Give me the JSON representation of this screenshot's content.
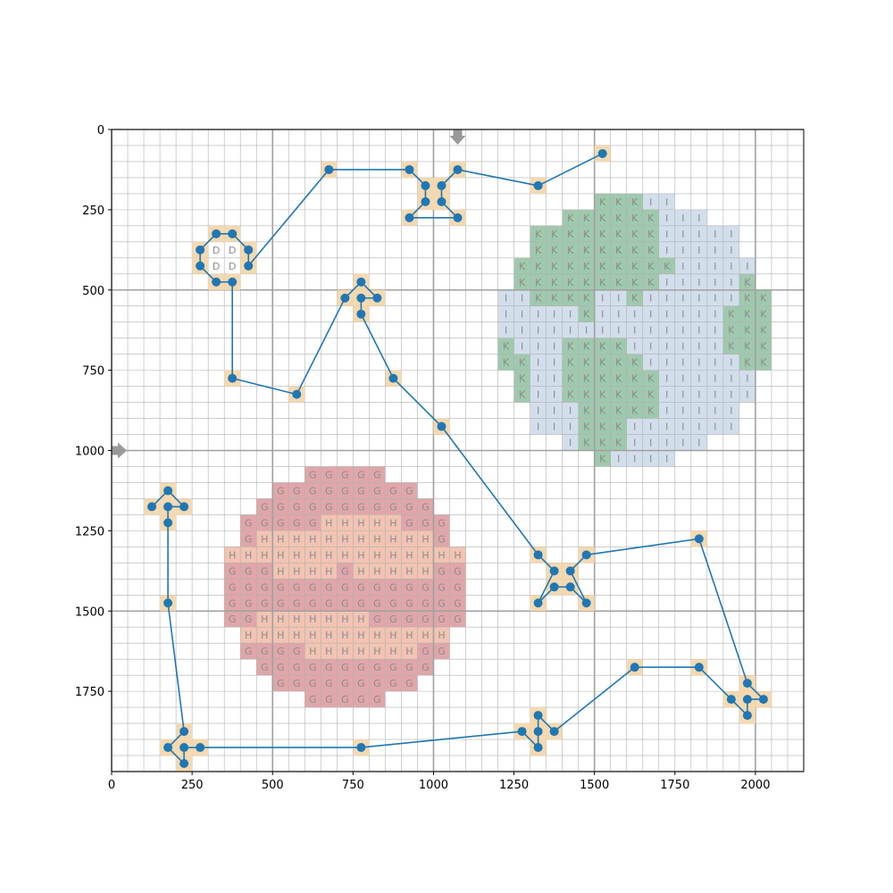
{
  "chart_data": {
    "type": "grid-path",
    "title": "",
    "xlabel": "",
    "ylabel": "",
    "xlim": [
      0,
      2150
    ],
    "ylim": [
      2000,
      0
    ],
    "grid": true,
    "minor_grid_step": 50,
    "major_grid_step": 500,
    "xticks": [
      0,
      250,
      500,
      750,
      1000,
      1250,
      1500,
      1750,
      2000
    ],
    "yticks": [
      0,
      250,
      500,
      750,
      1000,
      1250,
      1500,
      1750
    ],
    "markers": [
      {
        "x": 1075,
        "y": 25,
        "dir": "down"
      },
      {
        "x": 25,
        "y": 1000,
        "dir": "right"
      }
    ],
    "path": [
      [
        1525,
        75
      ],
      [
        1325,
        175
      ],
      [
        1075,
        125
      ],
      [
        1025,
        175
      ],
      [
        1025,
        225
      ],
      [
        1075,
        275
      ],
      [
        925,
        275
      ],
      [
        975,
        225
      ],
      [
        975,
        175
      ],
      [
        925,
        125
      ],
      [
        675,
        125
      ],
      [
        425,
        425
      ],
      [
        425,
        375
      ],
      [
        375,
        325
      ],
      [
        325,
        325
      ],
      [
        275,
        375
      ],
      [
        275,
        425
      ],
      [
        325,
        475
      ],
      [
        375,
        475
      ],
      [
        375,
        775
      ],
      [
        575,
        825
      ],
      [
        725,
        525
      ],
      [
        775,
        475
      ],
      [
        825,
        525
      ],
      [
        775,
        525
      ],
      [
        775,
        575
      ],
      [
        875,
        775
      ],
      [
        1025,
        925
      ],
      [
        1325,
        1325
      ],
      [
        1375,
        1375
      ],
      [
        1325,
        1475
      ],
      [
        1375,
        1425
      ],
      [
        1425,
        1425
      ],
      [
        1475,
        1475
      ],
      [
        1425,
        1375
      ],
      [
        1475,
        1325
      ],
      [
        1825,
        1275
      ],
      [
        1975,
        1725
      ],
      [
        2025,
        1775
      ],
      [
        1975,
        1775
      ],
      [
        1975,
        1825
      ],
      [
        1925,
        1775
      ],
      [
        1825,
        1675
      ],
      [
        1625,
        1675
      ],
      [
        1375,
        1875
      ],
      [
        1325,
        1825
      ],
      [
        1325,
        1875
      ],
      [
        1325,
        1925
      ],
      [
        1275,
        1875
      ],
      [
        775,
        1925
      ],
      [
        275,
        1925
      ],
      [
        225,
        1925
      ],
      [
        225,
        1975
      ],
      [
        175,
        1925
      ],
      [
        225,
        1875
      ],
      [
        175,
        1475
      ],
      [
        175,
        1225
      ],
      [
        175,
        1175
      ],
      [
        225,
        1175
      ],
      [
        175,
        1125
      ],
      [
        125,
        1175
      ]
    ],
    "regions": {
      "D": {
        "fill": "#ffffff",
        "rows": [
          {
            "y": 375,
            "x0": 325,
            "x1": 375
          },
          {
            "y": 425,
            "x0": 325,
            "x1": 375
          }
        ]
      },
      "I": {
        "fill": "#d2deec",
        "rows": [
          {
            "y": 225,
            "x0": 1525,
            "x1": 1725
          },
          {
            "y": 275,
            "x0": 1425,
            "x1": 1825
          },
          {
            "y": 325,
            "x0": 1325,
            "x1": 1925
          },
          {
            "y": 375,
            "x0": 1325,
            "x1": 1925
          },
          {
            "y": 425,
            "x0": 1275,
            "x1": 1975
          },
          {
            "y": 475,
            "x0": 1275,
            "x1": 1975
          },
          {
            "y": 525,
            "x0": 1225,
            "x1": 2025
          },
          {
            "y": 575,
            "x0": 1225,
            "x1": 2025
          },
          {
            "y": 625,
            "x0": 1225,
            "x1": 2025
          },
          {
            "y": 675,
            "x0": 1225,
            "x1": 2025
          },
          {
            "y": 725,
            "x0": 1225,
            "x1": 2025
          },
          {
            "y": 775,
            "x0": 1275,
            "x1": 1975
          },
          {
            "y": 825,
            "x0": 1275,
            "x1": 1975
          },
          {
            "y": 875,
            "x0": 1325,
            "x1": 1925
          },
          {
            "y": 925,
            "x0": 1325,
            "x1": 1925
          },
          {
            "y": 975,
            "x0": 1425,
            "x1": 1825
          },
          {
            "y": 1025,
            "x0": 1525,
            "x1": 1725
          }
        ]
      },
      "K": {
        "fill": "#9fc9ad",
        "rows": [
          {
            "y": 225,
            "x0": 1525,
            "x1": 1625
          },
          {
            "y": 275,
            "x0": 1425,
            "x1": 1675
          },
          {
            "y": 325,
            "x0": 1325,
            "x1": 1675
          },
          {
            "y": 375,
            "x0": 1325,
            "x1": 1675
          },
          {
            "y": 425,
            "x0": 1275,
            "x1": 1725
          },
          {
            "y": 475,
            "x0": 1275,
            "x1": 1675
          },
          {
            "y": 475,
            "x0": 1975,
            "x1": 1975
          },
          {
            "y": 525,
            "x0": 1325,
            "x1": 1475
          },
          {
            "y": 525,
            "x0": 1625,
            "x1": 1625
          },
          {
            "y": 525,
            "x0": 1975,
            "x1": 2025
          },
          {
            "y": 575,
            "x0": 1475,
            "x1": 1475
          },
          {
            "y": 575,
            "x0": 1925,
            "x1": 2025
          },
          {
            "y": 625,
            "x0": 1925,
            "x1": 2025
          },
          {
            "y": 675,
            "x0": 1225,
            "x1": 1225
          },
          {
            "y": 675,
            "x0": 1425,
            "x1": 1575
          },
          {
            "y": 675,
            "x0": 1925,
            "x1": 2025
          },
          {
            "y": 725,
            "x0": 1225,
            "x1": 1275
          },
          {
            "y": 725,
            "x0": 1425,
            "x1": 1625
          },
          {
            "y": 725,
            "x0": 1975,
            "x1": 2025
          },
          {
            "y": 775,
            "x0": 1275,
            "x1": 1275
          },
          {
            "y": 775,
            "x0": 1425,
            "x1": 1675
          },
          {
            "y": 825,
            "x0": 1275,
            "x1": 1275
          },
          {
            "y": 825,
            "x0": 1425,
            "x1": 1675
          },
          {
            "y": 875,
            "x0": 1475,
            "x1": 1675
          },
          {
            "y": 925,
            "x0": 1475,
            "x1": 1575
          },
          {
            "y": 975,
            "x0": 1475,
            "x1": 1575
          },
          {
            "y": 1025,
            "x0": 1525,
            "x1": 1525
          }
        ]
      },
      "G": {
        "fill": "#e0a6aa",
        "rows": [
          {
            "y": 1075,
            "x0": 625,
            "x1": 825
          },
          {
            "y": 1125,
            "x0": 525,
            "x1": 925
          },
          {
            "y": 1175,
            "x0": 475,
            "x1": 975
          },
          {
            "y": 1225,
            "x0": 425,
            "x1": 1025
          },
          {
            "y": 1275,
            "x0": 425,
            "x1": 1025
          },
          {
            "y": 1325,
            "x0": 375,
            "x1": 1075
          },
          {
            "y": 1375,
            "x0": 375,
            "x1": 1075
          },
          {
            "y": 1425,
            "x0": 375,
            "x1": 1075
          },
          {
            "y": 1475,
            "x0": 375,
            "x1": 1075
          },
          {
            "y": 1525,
            "x0": 375,
            "x1": 1075
          },
          {
            "y": 1575,
            "x0": 425,
            "x1": 1025
          },
          {
            "y": 1625,
            "x0": 425,
            "x1": 1025
          },
          {
            "y": 1675,
            "x0": 475,
            "x1": 975
          },
          {
            "y": 1725,
            "x0": 525,
            "x1": 925
          },
          {
            "y": 1775,
            "x0": 625,
            "x1": 825
          }
        ]
      },
      "H": {
        "fill": "#f2c4b2",
        "rows": [
          {
            "y": 1225,
            "x0": 675,
            "x1": 875
          },
          {
            "y": 1275,
            "x0": 475,
            "x1": 975
          },
          {
            "y": 1325,
            "x0": 375,
            "x1": 1075
          },
          {
            "y": 1375,
            "x0": 525,
            "x1": 675
          },
          {
            "y": 1375,
            "x0": 775,
            "x1": 975
          },
          {
            "y": 1525,
            "x0": 475,
            "x1": 775
          },
          {
            "y": 1575,
            "x0": 425,
            "x1": 1025
          },
          {
            "y": 1625,
            "x0": 625,
            "x1": 925
          }
        ]
      }
    },
    "region_order": [
      "D",
      "I",
      "K",
      "G",
      "H"
    ],
    "colors": {
      "line": "#1f77b4",
      "highlight": "#f5d9b0",
      "grid_minor": "#b0b0b0",
      "grid_major": "#a0a0a0",
      "marker": "#999999",
      "letter": "#8c8c8c"
    }
  }
}
